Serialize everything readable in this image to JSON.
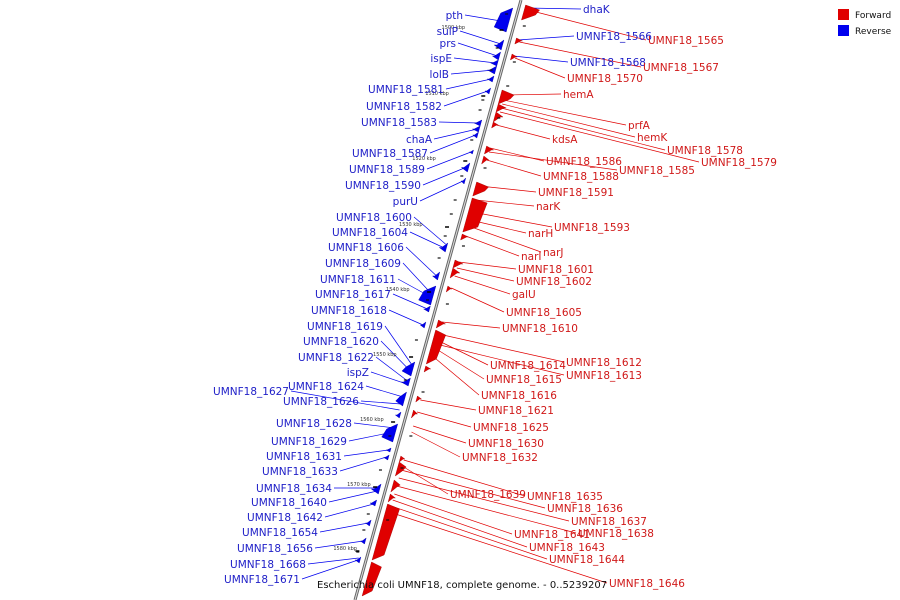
{
  "caption": "Escherichia coli UMNF18, complete genome. - 0..5239207",
  "legend": [
    {
      "label": "Forward",
      "color": "#e00000"
    },
    {
      "label": "Reverse",
      "color": "#0000ee"
    }
  ],
  "ticks": [
    "1500 kbp",
    "1510 kbp",
    "1520 kbp",
    "1530 kbp",
    "1540 kbp",
    "1550 kbp",
    "1560 kbp",
    "1570 kbp",
    "1580 kbp"
  ],
  "reverse_labels": [
    "pth",
    "sulP",
    "prs",
    "ispE",
    "lolB",
    "UMNF18_1581",
    "UMNF18_1582",
    "UMNF18_1583",
    "chaA",
    "UMNF18_1587",
    "UMNF18_1589",
    "UMNF18_1590",
    "purU",
    "UMNF18_1600",
    "UMNF18_1604",
    "UMNF18_1606",
    "UMNF18_1609",
    "UMNF18_1611",
    "UMNF18_1617",
    "UMNF18_1618",
    "UMNF18_1619",
    "UMNF18_1620",
    "UMNF18_1622",
    "ispZ",
    "UMNF18_1624",
    "UMNF18_1626",
    "UMNF18_1627",
    "UMNF18_1628",
    "UMNF18_1629",
    "UMNF18_1631",
    "UMNF18_1633",
    "UMNF18_1634",
    "UMNF18_1640",
    "UMNF18_1642",
    "UMNF18_1654",
    "UMNF18_1656",
    "UMNF18_1668",
    "UMNF18_1671",
    "dhaK",
    "UMNF18_1566",
    "UMNF18_1568"
  ],
  "forward_labels": [
    "UMNF18_1565",
    "UMNF18_1567",
    "UMNF18_1570",
    "hemA",
    "prfA",
    "hemK",
    "kdsA",
    "UMNF18_1578",
    "UMNF18_1579",
    "UMNF18_1586",
    "UMNF18_1585",
    "UMNF18_1588",
    "UMNF18_1591",
    "narK",
    "UMNF18_1593",
    "narH",
    "narJ",
    "narI",
    "UMNF18_1601",
    "UMNF18_1602",
    "galU",
    "UMNF18_1605",
    "UMNF18_1610",
    "UMNF18_1612",
    "UMNF18_1614",
    "UMNF18_1613",
    "UMNF18_1615",
    "UMNF18_1616",
    "UMNF18_1621",
    "UMNF18_1625",
    "UMNF18_1630",
    "UMNF18_1632",
    "UMNF18_1635",
    "UMNF18_1639",
    "UMNF18_1636",
    "UMNF18_1637",
    "UMNF18_1638",
    "UMNF18_1641",
    "UMNF18_1643",
    "UMNF18_1644",
    "UMNF18_1646"
  ]
}
